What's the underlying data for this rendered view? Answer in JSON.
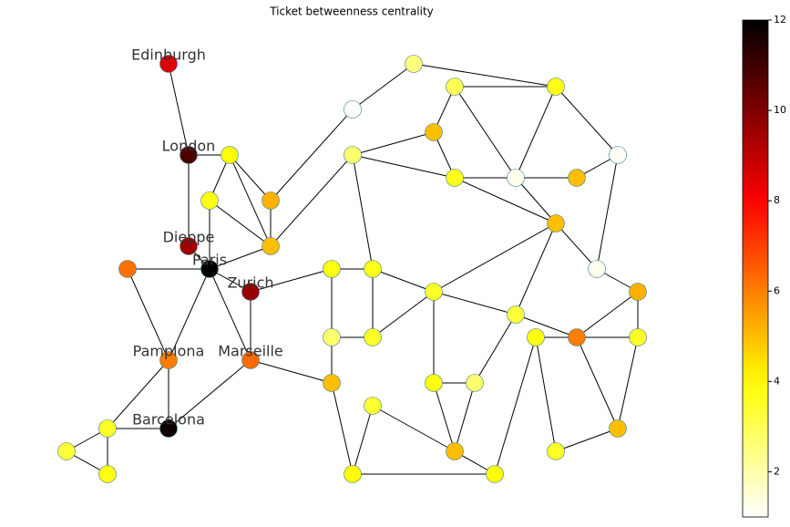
{
  "chart_data": {
    "type": "network",
    "title": "Ticket betweenness centrality",
    "colormap": "hot_r",
    "clim": [
      1,
      12
    ],
    "cticks": [
      2,
      4,
      6,
      8,
      10,
      12
    ],
    "nodes": [
      {
        "label": "Edinburgh",
        "value": 8.5
      },
      {
        "label": "London",
        "value": 10.8
      },
      {
        "label": "Dieppe",
        "value": 9.5
      },
      {
        "label": "Paris",
        "value": 12
      },
      {
        "label": "Zurich",
        "value": 9.6
      },
      {
        "label": "Pamplona",
        "value": 6
      },
      {
        "label": "Marseille",
        "value": 6.3
      },
      {
        "label": "Barcelona",
        "value": 11.8
      },
      {
        "value": 6.2
      },
      {
        "value": 4
      },
      {
        "value": 3.8
      },
      {
        "value": 5.2
      },
      {
        "value": 5
      },
      {
        "value": 1
      },
      {
        "value": 2.5
      },
      {
        "value": 3
      },
      {
        "value": 3.8
      },
      {
        "value": 5
      },
      {
        "value": 2.7
      },
      {
        "value": 3.7
      },
      {
        "value": 1.2
      },
      {
        "value": 5
      },
      {
        "value": 1.1
      },
      {
        "value": 5
      },
      {
        "value": 1.2
      },
      {
        "value": 5.2
      },
      {
        "value": 3.8
      },
      {
        "value": 3.7
      },
      {
        "value": 3.5
      },
      {
        "value": 3.3
      },
      {
        "value": 3.8
      },
      {
        "value": 6
      },
      {
        "value": 3.5
      },
      {
        "value": 2.7
      },
      {
        "value": 3.5
      },
      {
        "value": 5
      },
      {
        "value": 3.8
      },
      {
        "value": 2.7
      },
      {
        "value": 3.4
      },
      {
        "value": 5
      },
      {
        "value": 4
      },
      {
        "value": 3.5
      },
      {
        "value": 5
      },
      {
        "value": 4
      },
      {
        "value": 3.5
      },
      {
        "value": 3.3
      },
      {
        "value": 3.8
      }
    ]
  }
}
